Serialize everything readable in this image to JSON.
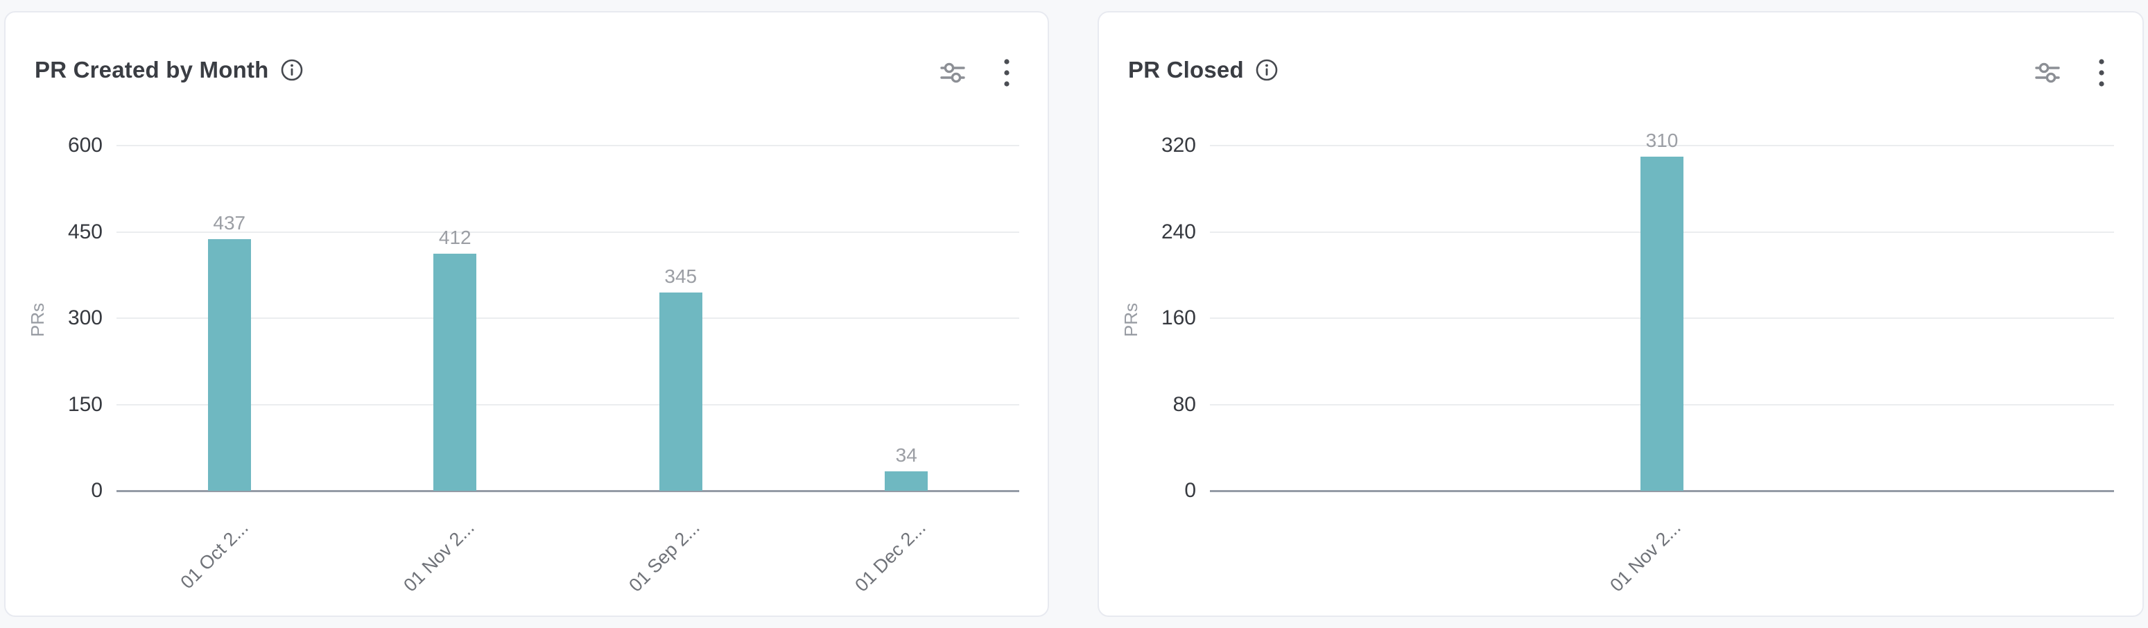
{
  "cards": [
    {
      "title": "PR Created by Month",
      "ylabel": "PRs"
    },
    {
      "title": "PR Closed",
      "ylabel": "PRs"
    }
  ],
  "icons": {
    "info": "info-icon",
    "filters": "horizontal-sliders-icon",
    "menu": "kebab-menu-icon"
  },
  "colors": {
    "bar": "#6fb8c1",
    "grid": "#ebedef",
    "axis": "#949ba6",
    "tick_label": "#36393f",
    "value_label": "#9b9ea4",
    "x_label": "#6f7278",
    "title": "#3a3d43",
    "icon_gray": "#8c8f95",
    "icon_dark": "#4b4e54",
    "card_border": "#e8eaf0",
    "page_bg": "#f7f8fa"
  },
  "chart_data": [
    {
      "type": "bar",
      "title": "PR Created by Month",
      "categories": [
        "01 Oct 2...",
        "01 Nov 2...",
        "01 Sep 2...",
        "01 Dec 2..."
      ],
      "values": [
        437,
        412,
        345,
        34
      ],
      "value_labels": [
        "437",
        "412",
        "345",
        "34"
      ],
      "xlabel": "",
      "ylabel": "PRs",
      "yticks": [
        0,
        150,
        300,
        450,
        600
      ],
      "ylim": [
        0,
        600
      ],
      "grid": true,
      "legend": false,
      "bar_color": "#6fb8c1"
    },
    {
      "type": "bar",
      "title": "PR Closed",
      "categories": [
        "01 Nov 2..."
      ],
      "values": [
        310
      ],
      "value_labels": [
        "310"
      ],
      "xlabel": "",
      "ylabel": "PRs",
      "yticks": [
        0,
        80,
        160,
        240,
        320
      ],
      "ylim": [
        0,
        320
      ],
      "grid": true,
      "legend": false,
      "bar_color": "#6fb8c1"
    }
  ]
}
